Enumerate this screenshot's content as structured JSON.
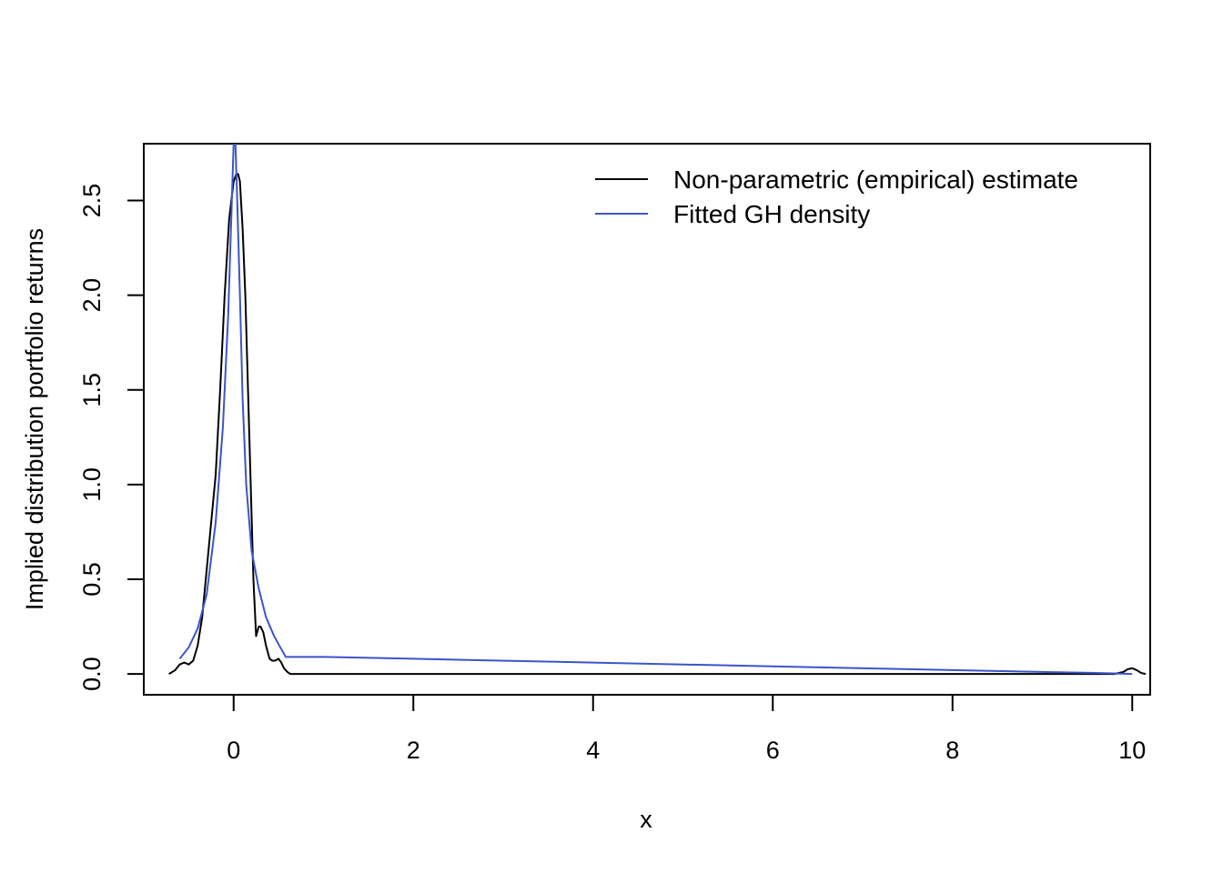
{
  "chart_data": {
    "type": "line",
    "title": "",
    "xlabel": "x",
    "ylabel": "Implied distribution portfolio returns",
    "xlim": [
      -1.0,
      10.2
    ],
    "ylim": [
      -0.11,
      2.8
    ],
    "x_ticks": [
      0,
      2,
      4,
      6,
      8,
      10
    ],
    "x_tick_labels": [
      "0",
      "2",
      "4",
      "6",
      "8",
      "10"
    ],
    "y_ticks": [
      0.0,
      0.5,
      1.0,
      1.5,
      2.0,
      2.5
    ],
    "y_tick_labels": [
      "0.0",
      "0.5",
      "1.0",
      "1.5",
      "2.0",
      "2.5"
    ],
    "legend_position": "top-right",
    "grid": false,
    "series": [
      {
        "name": "Non-parametric (empirical) estimate",
        "color": "#000000",
        "x": [
          -0.72,
          -0.65,
          -0.6,
          -0.55,
          -0.5,
          -0.45,
          -0.4,
          -0.35,
          -0.3,
          -0.25,
          -0.2,
          -0.15,
          -0.1,
          -0.05,
          0.0,
          0.03,
          0.05,
          0.07,
          0.1,
          0.13,
          0.16,
          0.19,
          0.22,
          0.25,
          0.28,
          0.3,
          0.33,
          0.36,
          0.4,
          0.43,
          0.46,
          0.5,
          0.53,
          0.56,
          0.6,
          0.63,
          0.66,
          0.7,
          0.8,
          1.0,
          2.0,
          4.0,
          6.0,
          8.0,
          9.6,
          9.8,
          9.9,
          9.95,
          10.0,
          10.05,
          10.1,
          10.15
        ],
        "y": [
          0.0,
          0.02,
          0.05,
          0.06,
          0.05,
          0.07,
          0.15,
          0.3,
          0.55,
          0.8,
          1.05,
          1.5,
          2.0,
          2.4,
          2.6,
          2.64,
          2.64,
          2.6,
          2.35,
          2.0,
          1.5,
          1.0,
          0.5,
          0.2,
          0.25,
          0.25,
          0.22,
          0.15,
          0.08,
          0.07,
          0.07,
          0.08,
          0.06,
          0.03,
          0.01,
          0.0,
          0.0,
          0.0,
          0.0,
          0.0,
          0.0,
          0.0,
          0.0,
          0.0,
          0.0,
          0.0,
          0.01,
          0.025,
          0.03,
          0.02,
          0.005,
          0.0
        ]
      },
      {
        "name": "Fitted GH density",
        "color": "#3b55c9",
        "x": [
          -0.6,
          -0.5,
          -0.4,
          -0.3,
          -0.2,
          -0.12,
          -0.06,
          -0.02,
          0.0,
          0.02,
          0.04,
          0.07,
          0.1,
          0.14,
          0.2,
          0.28,
          0.36,
          0.45,
          0.52,
          0.58,
          1.0,
          2.0,
          4.0,
          6.0,
          8.0,
          9.6,
          10.0
        ],
        "y": [
          0.08,
          0.14,
          0.24,
          0.42,
          0.8,
          1.3,
          1.9,
          2.5,
          2.8,
          2.8,
          2.5,
          2.0,
          1.45,
          1.0,
          0.65,
          0.45,
          0.3,
          0.2,
          0.14,
          0.09,
          0.09,
          0.08,
          0.06,
          0.04,
          0.02,
          0.005,
          0.0
        ]
      }
    ]
  }
}
